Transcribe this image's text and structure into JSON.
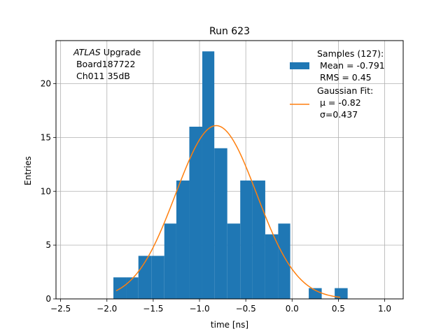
{
  "chart_data": {
    "type": "histogram",
    "title": "Run 623",
    "xlabel": "time [ns]",
    "ylabel": "Entries",
    "xlim": [
      -2.55,
      1.2
    ],
    "ylim": [
      0,
      24
    ],
    "xticks": [
      -2.5,
      -2.0,
      -1.5,
      -1.0,
      -0.5,
      0.0,
      0.5,
      1.0
    ],
    "xtick_labels": [
      "−2.5",
      "−2.0",
      "−1.5",
      "−1.0",
      "−0.5",
      "0.0",
      "0.5",
      "1.0"
    ],
    "yticks": [
      0,
      5,
      10,
      15,
      20
    ],
    "ytick_labels": [
      "0",
      "5",
      "10",
      "15",
      "20"
    ],
    "grid": true,
    "bins": [
      {
        "x0": -1.93,
        "x1": -1.79,
        "count": 2
      },
      {
        "x0": -1.79,
        "x1": -1.66,
        "count": 2
      },
      {
        "x0": -1.66,
        "x1": -1.52,
        "count": 4
      },
      {
        "x0": -1.52,
        "x1": -1.38,
        "count": 4
      },
      {
        "x0": -1.38,
        "x1": -1.25,
        "count": 7
      },
      {
        "x0": -1.25,
        "x1": -1.11,
        "count": 11
      },
      {
        "x0": -1.11,
        "x1": -0.97,
        "count": 16
      },
      {
        "x0": -0.97,
        "x1": -0.84,
        "count": 23
      },
      {
        "x0": -0.84,
        "x1": -0.7,
        "count": 14
      },
      {
        "x0": -0.7,
        "x1": -0.56,
        "count": 7
      },
      {
        "x0": -0.56,
        "x1": -0.43,
        "count": 11
      },
      {
        "x0": -0.43,
        "x1": -0.29,
        "count": 11
      },
      {
        "x0": -0.29,
        "x1": -0.15,
        "count": 6
      },
      {
        "x0": -0.15,
        "x1": -0.02,
        "count": 7
      },
      {
        "x0": 0.18,
        "x1": 0.32,
        "count": 1
      },
      {
        "x0": 0.46,
        "x1": 0.6,
        "count": 1
      }
    ],
    "fit": {
      "mu": -0.82,
      "sigma": 0.437,
      "peak": 16.1,
      "x_range": [
        -1.9,
        0.52
      ]
    },
    "legend": {
      "placement": "top-right",
      "samples_lines": [
        "Samples (127):",
        " Mean = -0.791",
        " RMS = 0.45"
      ],
      "fit_lines": [
        "Gaussian Fit:",
        " μ = -0.82",
        " σ=0.437"
      ]
    },
    "annotation": {
      "italic_word": "ATLAS",
      "rest_first_line": " Upgrade",
      "lines": [
        " Board187722",
        " Ch011 35dB"
      ]
    },
    "colors": {
      "bars": "#1f77b4",
      "fit": "#ff7f0e",
      "grid": "#b0b0b0"
    }
  }
}
